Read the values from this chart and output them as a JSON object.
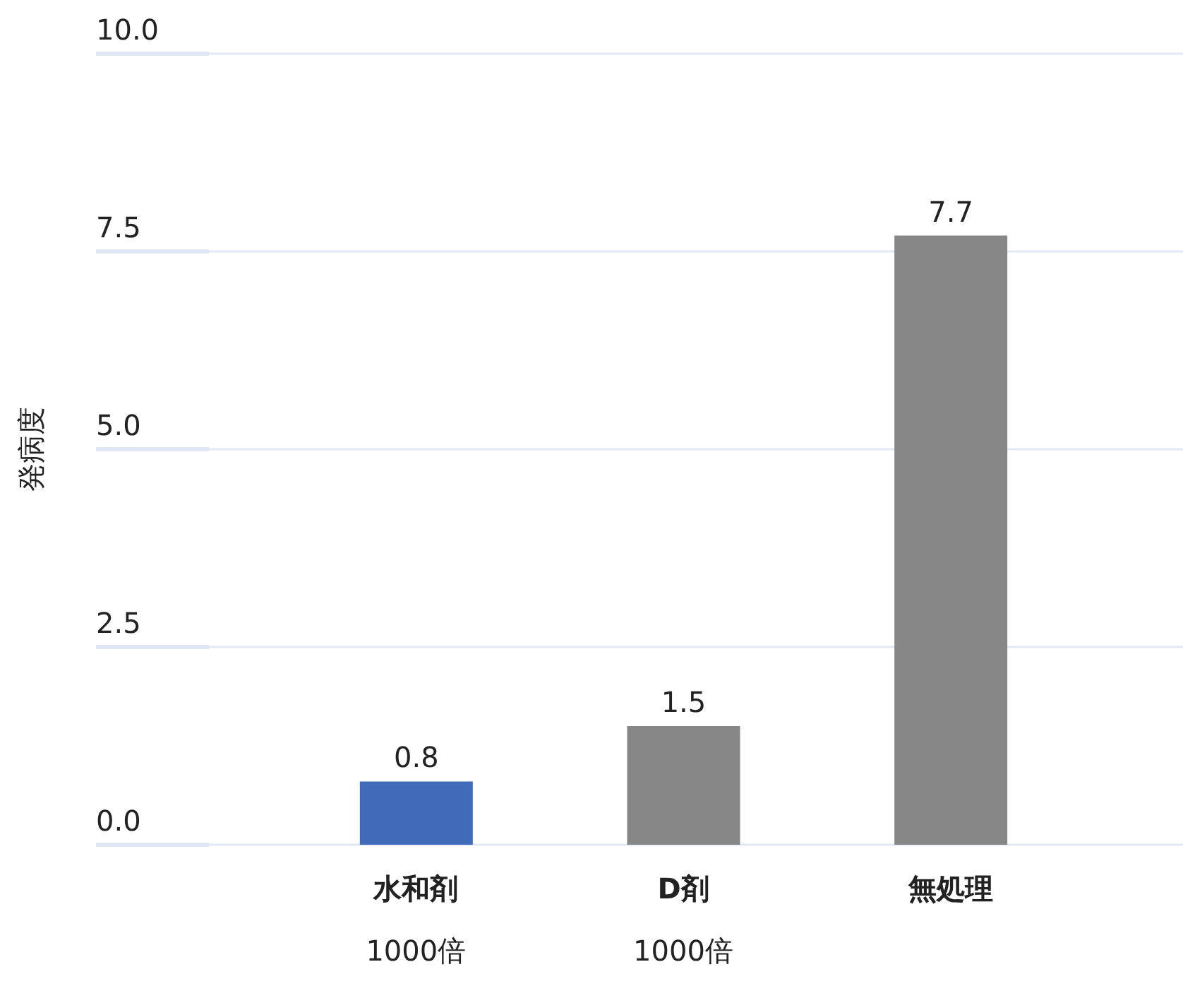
{
  "chart_data": {
    "type": "bar",
    "ylabel": "発病度",
    "categories": [
      "水和剤\n1000倍",
      "D剤\n1000倍",
      "無処理"
    ],
    "values": [
      0.8,
      1.5,
      7.7
    ],
    "colors": [
      "#3f6bb8",
      "#878787",
      "#878787"
    ],
    "ylim": [
      0,
      10
    ],
    "yticks": [
      {
        "value": 0,
        "label": "0.0"
      },
      {
        "value": 2.5,
        "label": "2.5"
      },
      {
        "value": 5,
        "label": "5.0"
      },
      {
        "value": 7.5,
        "label": "7.5"
      },
      {
        "value": 10,
        "label": "10.0"
      }
    ],
    "grid": "y",
    "data_labels": true,
    "legend": false
  }
}
